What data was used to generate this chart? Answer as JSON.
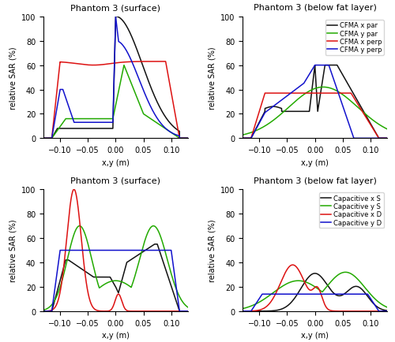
{
  "title_top_left": "Phantom 3 (surface)",
  "title_top_right": "Phantom 3 (below fat layer)",
  "title_bot_left": "Phantom 3 (surface)",
  "title_bot_right": "Phantom 3 (below fat layer)",
  "xlabel": "x,y (m)",
  "ylabel": "relative SAR (%)",
  "xlim": [
    -0.13,
    0.13
  ],
  "ylim": [
    0,
    100
  ],
  "legend_cfma": [
    "CFMA x par",
    "CFMA y par",
    "CFMA x perp",
    "CFMA y perp"
  ],
  "legend_cap": [
    "Capacitive x S",
    "Capacitive y S",
    "Capacitive x D",
    "Capacitive y D"
  ],
  "colors": [
    "#111111",
    "#22aa00",
    "#dd1111",
    "#1111cc"
  ],
  "figsize": [
    5.0,
    4.35
  ],
  "dpi": 100
}
